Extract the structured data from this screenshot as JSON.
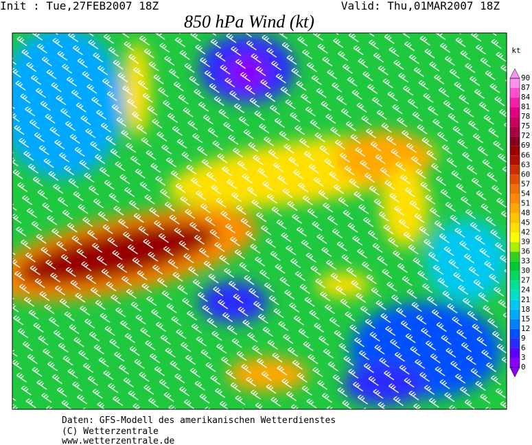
{
  "header": {
    "init": "Init : Tue,27FEB2007 18Z",
    "valid": "Valid: Thu,01MAR2007 18Z",
    "title": "850 hPa Wind (kt)"
  },
  "legend": {
    "unit": "kt",
    "levels": [
      0,
      3,
      6,
      9,
      12,
      15,
      18,
      21,
      24,
      27,
      30,
      33,
      36,
      39,
      42,
      45,
      48,
      51,
      54,
      57,
      60,
      63,
      66,
      69,
      72,
      75,
      78,
      81,
      84,
      87,
      90
    ],
    "colors": [
      "#8a00ff",
      "#5a00ff",
      "#2a2aff",
      "#0050ff",
      "#0080ff",
      "#00a8ff",
      "#00c8f0",
      "#00e0c8",
      "#00e098",
      "#00d860",
      "#00c830",
      "#30d020",
      "#a8f000",
      "#ffff00",
      "#ffe000",
      "#ffc400",
      "#ffa800",
      "#ff8c00",
      "#f07000",
      "#e05000",
      "#c83000",
      "#b01000",
      "#980000",
      "#880020",
      "#a80040",
      "#c80060",
      "#e00080",
      "#f020a8",
      "#ff50d0",
      "#ff90f0"
    ]
  },
  "footer": [
    "Daten: GFS-Modell des amerikanischen Wetterdienstes",
    "(C) Wetterzentrale",
    "www.wetterzentrale.de"
  ]
}
